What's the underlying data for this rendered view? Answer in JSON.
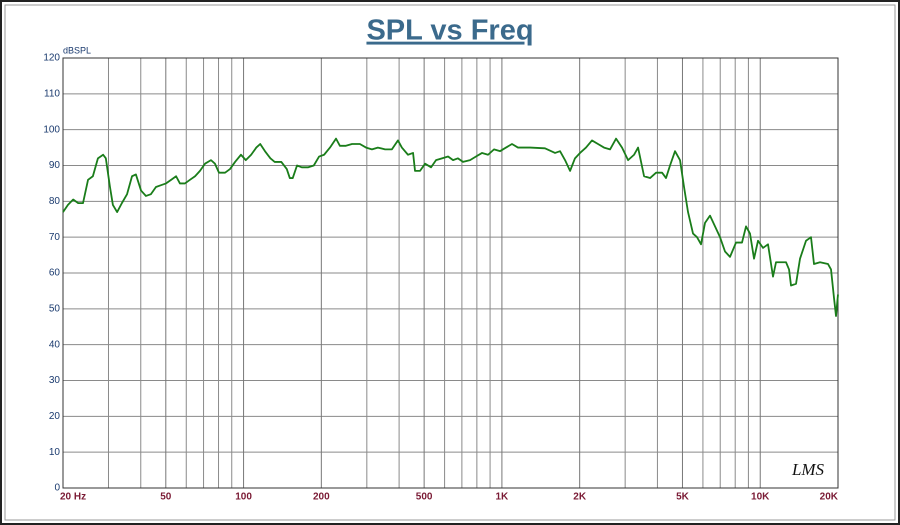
{
  "chart_data": {
    "type": "line",
    "title": "SPL vs Freq",
    "y_label": "dBSPL",
    "watermark": "LMS",
    "log_x": true,
    "grid": true,
    "xlim": [
      20,
      20000
    ],
    "ylim": [
      0,
      120
    ],
    "yticks": [
      0,
      10,
      20,
      30,
      40,
      50,
      60,
      70,
      80,
      90,
      100,
      110,
      120
    ],
    "xticks": [
      {
        "value": 20,
        "label": "20 Hz"
      },
      50,
      100,
      200,
      500,
      {
        "value": 1000,
        "label": "1K"
      },
      {
        "value": 2000,
        "label": "2K"
      },
      {
        "value": 5000,
        "label": "5K"
      },
      {
        "value": 10000,
        "label": "10K"
      },
      {
        "value": 20000,
        "label": "20K"
      }
    ],
    "x": [
      20,
      20.9,
      21.9,
      22.9,
      23.9,
      25.0,
      26.1,
      27.3,
      28.6,
      29.3,
      30.4,
      31.2,
      32.4,
      33.8,
      35.4,
      37,
      38.3,
      40.1,
      41.9,
      43.8,
      45.8,
      47.9,
      50.1,
      52.4,
      54.8,
      56.7,
      59.3,
      62,
      64.9,
      67.8,
      70.9,
      74.8,
      77.5,
      80.3,
      84.8,
      88.6,
      92.7,
      97.7,
      102,
      107,
      112,
      116,
      121,
      127,
      132,
      140,
      147,
      151,
      155,
      161,
      168,
      178,
      187,
      196,
      205,
      216,
      228,
      236,
      249,
      263,
      282,
      298,
      314,
      331,
      353,
      375,
      396,
      410,
      433,
      453,
      461,
      482,
      504,
      532,
      556,
      586,
      619,
      647,
      676,
      707,
      753,
      794,
      838,
      884,
      932,
      983,
      1037,
      1094,
      1154,
      1285,
      1468,
      1606,
      1679,
      1756,
      1836,
      1918,
      2006,
      2116,
      2232,
      2355,
      2485,
      2622,
      2766,
      2918,
      3079,
      3248,
      3366,
      3551,
      3746,
      3952,
      4169,
      4319,
      4475,
      4679,
      4893,
      5070,
      5254,
      5493,
      5693,
      5899,
      6113,
      6391,
      6683,
      6987,
      7306,
      7638,
      8058,
      8501,
      8810,
      9129,
      9461,
      9805,
      10251,
      10718,
      11206,
      11510,
      12585,
      12926,
      13158,
      13758,
      14257,
      15038,
      15722,
      16148,
      17038,
      18297,
      18793,
      19301,
      19649,
      20000
    ],
    "series": [
      {
        "name": "SPL",
        "color": "#1a7d1a",
        "values": [
          77,
          79,
          80.5,
          79.5,
          79.5,
          86,
          87,
          92,
          93,
          92,
          84,
          79,
          77,
          79.5,
          82,
          87,
          87.5,
          83,
          81.5,
          82,
          84,
          84.5,
          85,
          86,
          87,
          85,
          85,
          86,
          87,
          88.5,
          90.5,
          91.5,
          90.5,
          88,
          88,
          89,
          91,
          93,
          91.5,
          93,
          95,
          96,
          94,
          92,
          91,
          91,
          89,
          86.5,
          86.5,
          90,
          89.5,
          89.5,
          90,
          92.5,
          93,
          95,
          97.5,
          95.5,
          95.5,
          96,
          96,
          95,
          94.5,
          95,
          94.5,
          94.5,
          97,
          95,
          93,
          93.5,
          88.5,
          88.5,
          90.5,
          89.5,
          91.5,
          92,
          92.5,
          91.5,
          92,
          91,
          91.5,
          92.5,
          93.5,
          93,
          94.5,
          94,
          95,
          96,
          95,
          95,
          94.8,
          93.5,
          94,
          91.5,
          88.5,
          92,
          93.5,
          95,
          97,
          96,
          95,
          94.5,
          97.5,
          95,
          91.5,
          93,
          95,
          87,
          86.5,
          88,
          88,
          86.5,
          90,
          94,
          91.5,
          84,
          77,
          71,
          70,
          68,
          74,
          76,
          73,
          70,
          66,
          64.5,
          68.5,
          68.5,
          73,
          71,
          64,
          69,
          67,
          68,
          59,
          63,
          63,
          61,
          56.5,
          57,
          64,
          69,
          70,
          62.5,
          63,
          62.5,
          61,
          53,
          48,
          54
        ]
      }
    ]
  }
}
